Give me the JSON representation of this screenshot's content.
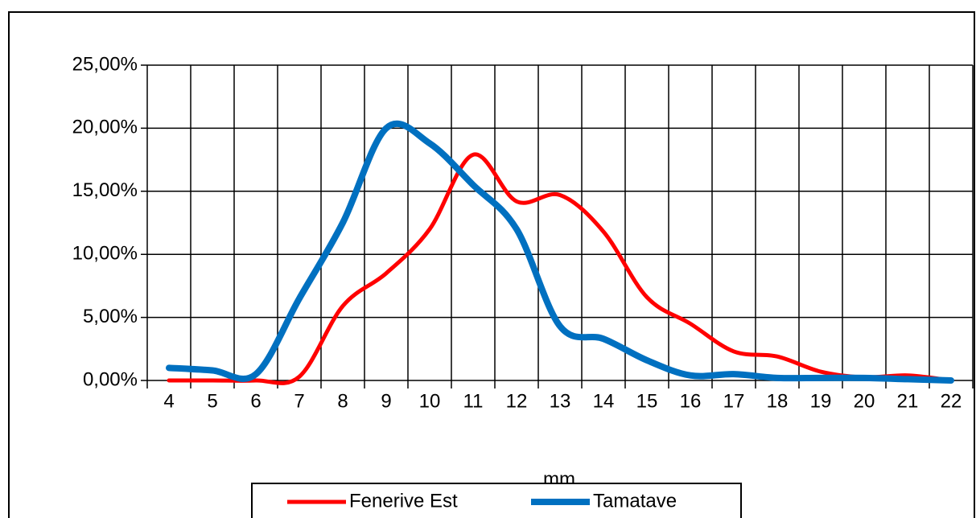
{
  "chart_data": {
    "type": "line",
    "x_label": "mm",
    "categories": [
      "4",
      "5",
      "6",
      "7",
      "8",
      "9",
      "10",
      "11",
      "12",
      "13",
      "14",
      "15",
      "16",
      "17",
      "18",
      "19",
      "20",
      "21",
      "22"
    ],
    "series": [
      {
        "name": "Fenerive Est",
        "color": "#ff0000",
        "values": [
          0,
          0,
          0,
          0.3,
          5.9,
          8.5,
          12,
          17.9,
          14.2,
          14.7,
          11.8,
          6.6,
          4.5,
          2.3,
          1.9,
          0.7,
          0.25,
          0.4,
          0
        ]
      },
      {
        "name": "Tamatave",
        "color": "#0070c0",
        "values": [
          1.0,
          0.8,
          0.5,
          6.5,
          12.5,
          20.0,
          18.8,
          15.5,
          12,
          4.3,
          3.3,
          1.6,
          0.4,
          0.5,
          0.2,
          0.2,
          0.2,
          0.1,
          0
        ]
      }
    ],
    "ylim": [
      0,
      25
    ],
    "yticks": [
      {
        "value": 0,
        "label": "0,00%"
      },
      {
        "value": 5,
        "label": "5,00%"
      },
      {
        "value": 10,
        "label": "10,00%"
      },
      {
        "value": 15,
        "label": "15,00%"
      },
      {
        "value": 20,
        "label": "20,00%"
      },
      {
        "value": 25,
        "label": "25,00%"
      }
    ],
    "grid": true,
    "legend": "bottom"
  }
}
